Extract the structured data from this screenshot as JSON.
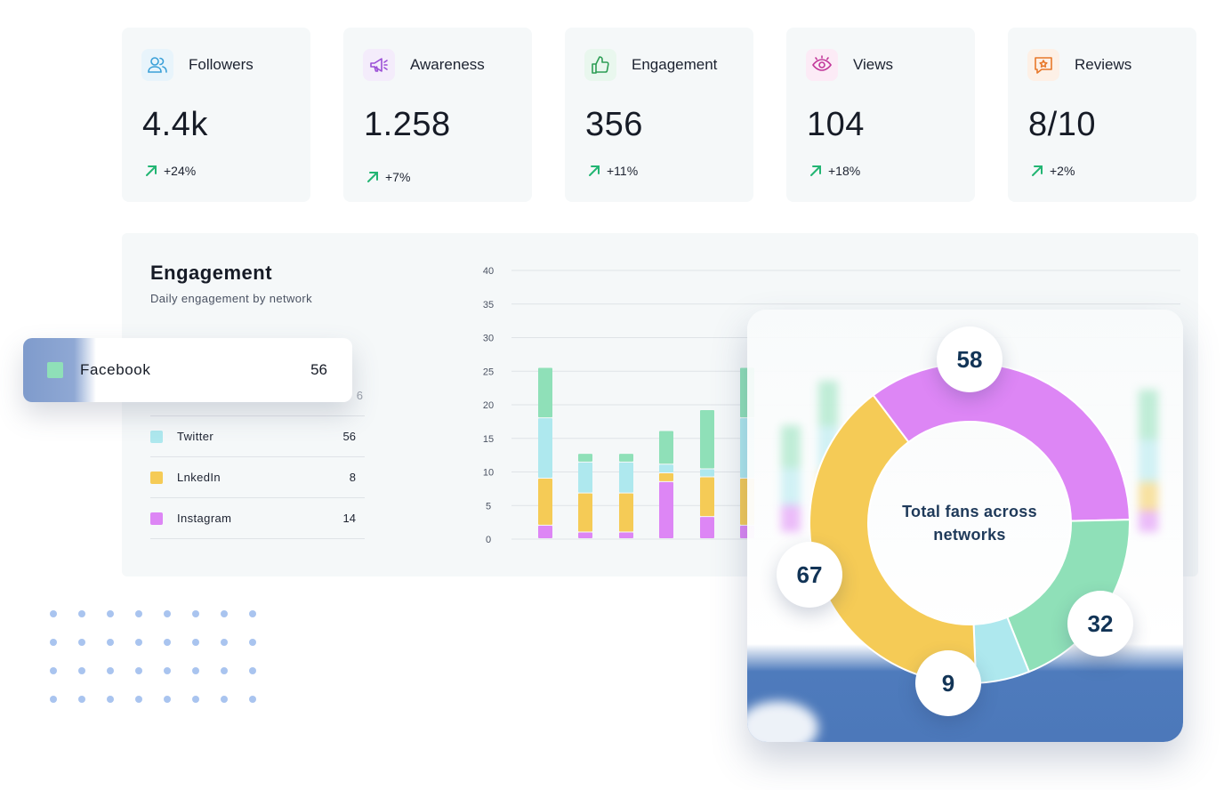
{
  "kpis": [
    {
      "label": "Followers",
      "value": "4.4k",
      "change": "+24%",
      "icon": "users-icon"
    },
    {
      "label": "Awareness",
      "value": "1.258",
      "change": "+7%",
      "icon": "megaphone-icon"
    },
    {
      "label": "Engagement",
      "value": "356",
      "change": "+11%",
      "icon": "thumbs-up-icon"
    },
    {
      "label": "Views",
      "value": "104",
      "change": "+18%",
      "icon": "eye-icon"
    },
    {
      "label": "Reviews",
      "value": "8/10",
      "change": "+2%",
      "icon": "star-chat-icon"
    }
  ],
  "engagement": {
    "title": "Engagement",
    "subtitle": "Daily engagement by network",
    "legend": [
      {
        "name": "Twitter",
        "value": "56",
        "color": "#aee8ee"
      },
      {
        "name": "LnkedIn",
        "value": "8",
        "color": "#f5cb56"
      },
      {
        "name": "Instagram",
        "value": "14",
        "color": "#dd86f5"
      }
    ],
    "legend_partial_value": "6"
  },
  "floating_card": {
    "name": "Facebook",
    "value": "56",
    "color": "#8fe0b8"
  },
  "colors": {
    "facebook": "#8fe0b8",
    "twitter": "#aee8ee",
    "linkedin": "#f5cb56",
    "instagram": "#dd86f5",
    "trend_up": "#22b573",
    "card_bg": "#f5f8f9",
    "donut_bottom": "#4e7bbc"
  },
  "chart_data": [
    {
      "type": "bar",
      "stacked": true,
      "yticks": [
        "0",
        "5",
        "10",
        "15",
        "20",
        "25",
        "30",
        "35",
        "40"
      ],
      "ylim": [
        0,
        40
      ],
      "grid": true,
      "series": [
        {
          "name": "Instagram",
          "values": [
            2,
            1,
            1,
            8.5,
            3.3,
            2
          ],
          "color": "#dd86f5"
        },
        {
          "name": "LnkedIn",
          "values": [
            7,
            5.8,
            5.8,
            1.3,
            5.9,
            7
          ],
          "color": "#f5cb56"
        },
        {
          "name": "Twitter",
          "values": [
            9,
            4.6,
            4.6,
            1.3,
            1.2,
            9
          ],
          "color": "#aee8ee"
        },
        {
          "name": "Facebook",
          "values": [
            7.5,
            1.3,
            1.3,
            5,
            8.8,
            7.5
          ],
          "color": "#8fe0b8"
        }
      ]
    },
    {
      "type": "pie",
      "title": "Total fans across networks",
      "slices": [
        {
          "name": "Instagram",
          "value": 58,
          "color": "#dd86f5"
        },
        {
          "name": "Facebook",
          "value": 32,
          "color": "#8fe0b8"
        },
        {
          "name": "Twitter",
          "value": 9,
          "color": "#aee8ee"
        },
        {
          "name": "LnkedIn",
          "value": 67,
          "color": "#f5cb56"
        }
      ]
    }
  ]
}
